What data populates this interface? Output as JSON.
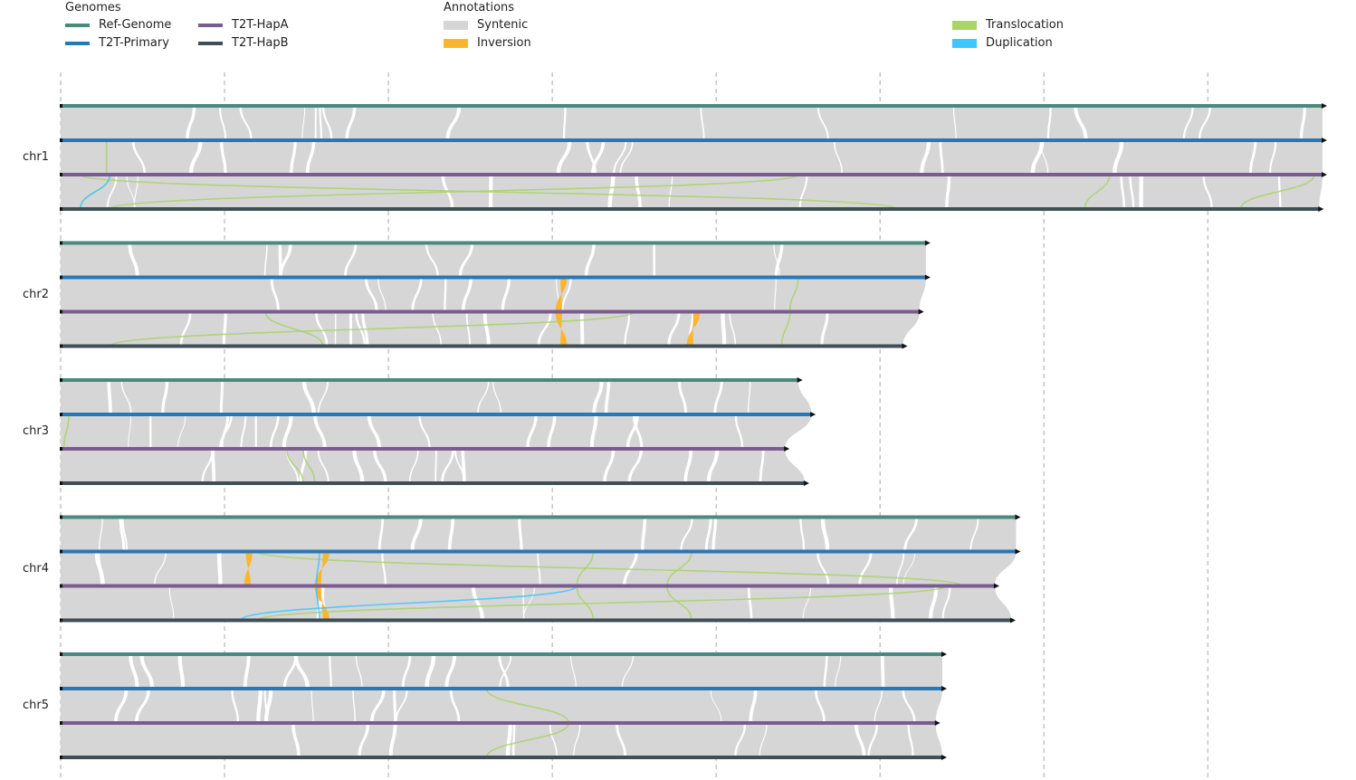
{
  "legend": {
    "genomes_title": "Genomes",
    "genomes": [
      {
        "name": "Ref-Genome",
        "color": "#4a8a7e"
      },
      {
        "name": "T2T-Primary",
        "color": "#2877b6"
      },
      {
        "name": "T2T-HapA",
        "color": "#7b5c90"
      },
      {
        "name": "T2T-HapB",
        "color": "#3f4e57"
      }
    ],
    "annotations_title": "Annotations",
    "annotations": [
      {
        "name": "Syntenic",
        "color": "#d6d6d6"
      },
      {
        "name": "Inversion",
        "color": "#fbb62e"
      },
      {
        "name": "Translocation",
        "color": "#a9d466"
      },
      {
        "name": "Duplication",
        "color": "#3ec7ff"
      }
    ]
  },
  "chart_data": {
    "type": "synteny",
    "genome_order": [
      "Ref-Genome",
      "T2T-Primary",
      "T2T-HapA",
      "T2T-HapB"
    ],
    "x_range": [
      0,
      7.7
    ],
    "x_gridlines": [
      0,
      1,
      2,
      3,
      4,
      5,
      6,
      7
    ],
    "chromosomes": [
      {
        "name": "chr1",
        "lengths": [
          7.7,
          7.7,
          7.7,
          7.68
        ],
        "inversions": [],
        "translocations": [
          {
            "from": 1,
            "to": 2,
            "x": [
              0.28,
              0.28
            ]
          },
          {
            "from": 2,
            "to": 3,
            "x": [
              0.3,
              0.12
            ]
          },
          {
            "from": 2,
            "to": 3,
            "x": [
              7.65,
              7.2
            ]
          },
          {
            "from": 2,
            "to": 3,
            "x": [
              6.4,
              6.25
            ]
          },
          {
            "from": 2,
            "to": 3,
            "x": [
              0.12,
              5.1
            ]
          },
          {
            "from": 2,
            "to": 3,
            "x": [
              4.5,
              0.3
            ]
          }
        ],
        "duplications": [
          {
            "from": 2,
            "to": 3,
            "x": [
              0.3,
              0.12
            ]
          }
        ]
      },
      {
        "name": "chr2",
        "lengths": [
          5.28,
          5.28,
          5.24,
          5.14
        ],
        "inversions": [
          {
            "from": 1,
            "to": 2,
            "x": [
              3.05,
              3.02
            ]
          },
          {
            "from": 2,
            "to": 3,
            "x": [
              3.02,
              3.05
            ]
          },
          {
            "from": 2,
            "to": 3,
            "x": [
              3.86,
              3.82
            ]
          }
        ],
        "translocations": [
          {
            "from": 1,
            "to": 2,
            "x": [
              4.5,
              4.45
            ]
          },
          {
            "from": 2,
            "to": 3,
            "x": [
              4.45,
              4.4
            ]
          },
          {
            "from": 2,
            "to": 3,
            "x": [
              1.25,
              1.6
            ]
          },
          {
            "from": 2,
            "to": 3,
            "x": [
              3.5,
              0.3
            ]
          }
        ],
        "duplications": []
      },
      {
        "name": "chr3",
        "lengths": [
          4.5,
          4.58,
          4.42,
          4.54
        ],
        "inversions": [],
        "translocations": [
          {
            "from": 1,
            "to": 2,
            "x": [
              0.05,
              0.02
            ]
          },
          {
            "from": 2,
            "to": 3,
            "x": [
              1.38,
              1.48
            ]
          },
          {
            "from": 2,
            "to": 3,
            "x": [
              1.48,
              1.55
            ]
          }
        ],
        "duplications": []
      },
      {
        "name": "chr4",
        "lengths": [
          5.83,
          5.83,
          5.7,
          5.8
        ],
        "inversions": [
          {
            "from": 1,
            "to": 2,
            "x": [
              1.6,
              1.55
            ]
          },
          {
            "from": 2,
            "to": 3,
            "x": [
              1.55,
              1.6
            ]
          },
          {
            "from": 1,
            "to": 2,
            "x": [
              1.13,
              1.12
            ]
          }
        ],
        "translocations": [
          {
            "from": 1,
            "to": 2,
            "x": [
              3.25,
              3.15
            ]
          },
          {
            "from": 2,
            "to": 3,
            "x": [
              3.15,
              3.25
            ]
          },
          {
            "from": 1,
            "to": 2,
            "x": [
              3.85,
              3.7
            ]
          },
          {
            "from": 2,
            "to": 3,
            "x": [
              3.7,
              3.85
            ]
          },
          {
            "from": 1,
            "to": 2,
            "x": [
              1.2,
              5.5
            ]
          },
          {
            "from": 2,
            "to": 3,
            "x": [
              5.4,
              1.2
            ]
          }
        ],
        "duplications": [
          {
            "from": 1,
            "to": 2,
            "x": [
              1.58,
              1.56
            ]
          },
          {
            "from": 2,
            "to": 3,
            "x": [
              1.56,
              1.58
            ]
          },
          {
            "from": 2,
            "to": 3,
            "x": [
              3.15,
              1.1
            ]
          }
        ]
      },
      {
        "name": "chr5",
        "lengths": [
          5.38,
          5.38,
          5.34,
          5.38
        ],
        "inversions": [],
        "translocations": [
          {
            "from": 2,
            "to": 3,
            "x": [
              3.1,
              2.6
            ]
          },
          {
            "from": 1,
            "to": 2,
            "x": [
              2.6,
              3.1
            ]
          }
        ],
        "duplications": []
      }
    ]
  }
}
